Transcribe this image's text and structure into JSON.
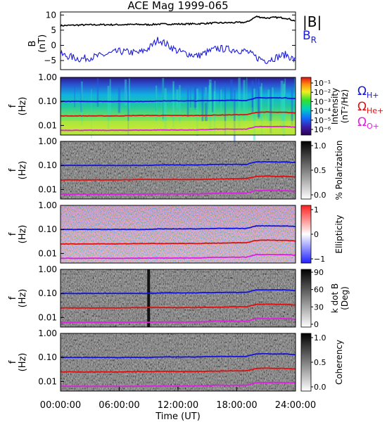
{
  "title": "ACE Mag 1999-065",
  "x_axis": {
    "label": "Time (UT)",
    "ticks": [
      "00:00:00",
      "06:00:00",
      "12:00:00",
      "18:00:00",
      "24:00:00"
    ]
  },
  "legend": {
    "B_total": "|B|",
    "B_R": "B",
    "B_R_sub": "R",
    "omega": "Ω",
    "omega_H_sub": "H+",
    "omega_He_sub": "He+",
    "omega_O_sub": "O+"
  },
  "colors": {
    "B_total": "#000000",
    "B_R": "#1a1adc",
    "H": "#1414dc",
    "He": "#e01010",
    "O": "#e020e0"
  },
  "panel_ylabel": {
    "main": "f",
    "sub": "(Hz)"
  },
  "freq_ticks": [
    "1.00",
    "0.10",
    "0.01"
  ],
  "panels": [
    {
      "cbar_label_1": "Intensity",
      "cbar_label_2": "(nT²/Hz)",
      "cbar_ticks": [
        "10⁻¹",
        "10⁻²",
        "10⁻³",
        "10⁻⁴",
        "10⁻⁵",
        "10⁻⁶"
      ]
    },
    {
      "cbar_label_1": "% Polarization",
      "cbar_label_2": "",
      "cbar_ticks": [
        "1.0",
        "0.5",
        "0.0"
      ]
    },
    {
      "cbar_label_1": "Ellipticity",
      "cbar_label_2": "",
      "cbar_ticks": [
        "1",
        "0",
        "−1"
      ]
    },
    {
      "cbar_label_1": "k dot B",
      "cbar_label_2": "(Deg)",
      "cbar_ticks": [
        "90",
        "60",
        "30",
        "0"
      ]
    },
    {
      "cbar_label_1": "Coherency",
      "cbar_label_2": "",
      "cbar_ticks": [
        "1.0",
        "0.5",
        "0.0"
      ]
    }
  ],
  "chart_data": {
    "type": "line",
    "title": "ACE Mag 1999-065",
    "xlabel": "Time (UT)",
    "x_hours": [
      0,
      2,
      4,
      6,
      8,
      9,
      10,
      12,
      14,
      16,
      18,
      19,
      20,
      21,
      22,
      23,
      24
    ],
    "b_panel": {
      "ylabel": "B (nT)",
      "y_ticks": [
        10,
        5,
        0,
        -5
      ],
      "ylim": [
        -8,
        11
      ],
      "series": [
        {
          "name": "|B|",
          "values": [
            6.5,
            6.7,
            6.8,
            6.8,
            6.9,
            6.8,
            7.0,
            7.0,
            7.1,
            7.4,
            7.5,
            7.6,
            9.5,
            9.0,
            9.2,
            9.0,
            8.0
          ]
        },
        {
          "name": "B_R",
          "values": [
            -3.0,
            -4.5,
            -3.5,
            -2.0,
            -2.5,
            -1.0,
            2.0,
            -2.0,
            -3.5,
            -1.0,
            -1.5,
            -2.0,
            -4.0,
            -5.0,
            -4.0,
            -3.0,
            -5.0
          ]
        }
      ]
    },
    "spectrogram": {
      "ylabel": "f (Hz)",
      "yscale": "log",
      "ylim": [
        0.004,
        1.0
      ],
      "gyrofrequency_series": [
        {
          "name": "ΩH+",
          "values": [
            0.1,
            0.1,
            0.1,
            0.1,
            0.1,
            0.1,
            0.105,
            0.105,
            0.105,
            0.11,
            0.11,
            0.11,
            0.14,
            0.14,
            0.14,
            0.14,
            0.13
          ]
        },
        {
          "name": "ΩHe+",
          "values": [
            0.025,
            0.025,
            0.025,
            0.025,
            0.026,
            0.026,
            0.026,
            0.026,
            0.026,
            0.027,
            0.028,
            0.028,
            0.035,
            0.036,
            0.035,
            0.035,
            0.033
          ]
        },
        {
          "name": "ΩO+",
          "values": [
            0.0063,
            0.0063,
            0.0063,
            0.0063,
            0.0064,
            0.0064,
            0.0065,
            0.0065,
            0.0065,
            0.007,
            0.007,
            0.007,
            0.009,
            0.009,
            0.009,
            0.009,
            0.0085
          ]
        }
      ]
    }
  }
}
